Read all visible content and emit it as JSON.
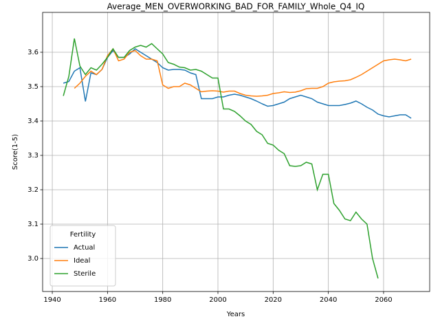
{
  "chart_data": {
    "type": "line",
    "title": "Average_MEN_OVERWORKING_BAD_FOR_FAMILY_Whole_Q4_IQ",
    "xlabel": "Years",
    "ylabel": "Score(1-5)",
    "x": [
      1944,
      1946,
      1948,
      1950,
      1952,
      1954,
      1956,
      1958,
      1960,
      1962,
      1964,
      1966,
      1968,
      1970,
      1972,
      1974,
      1976,
      1978,
      1980,
      1982,
      1984,
      1986,
      1988,
      1990,
      1992,
      1994,
      1996,
      1998,
      2000,
      2002,
      2004,
      2006,
      2008,
      2010,
      2012,
      2014,
      2016,
      2018,
      2020,
      2022,
      2024,
      2026,
      2028,
      2030,
      2032,
      2034,
      2036,
      2038,
      2040,
      2042,
      2044,
      2046,
      2048,
      2050,
      2052,
      2054,
      2056,
      2058,
      2060,
      2062,
      2064,
      2066,
      2068,
      2070
    ],
    "series": [
      {
        "name": "Actual",
        "color": "#1f77b4",
        "values": [
          3.51,
          3.515,
          3.545,
          3.555,
          3.457,
          3.54,
          3.535,
          3.55,
          3.585,
          3.605,
          3.585,
          3.585,
          3.595,
          3.61,
          3.6,
          3.59,
          3.58,
          3.57,
          3.555,
          3.548,
          3.55,
          3.55,
          3.548,
          3.54,
          3.535,
          3.465,
          3.465,
          3.465,
          3.47,
          3.47,
          3.475,
          3.478,
          3.475,
          3.47,
          3.465,
          3.458,
          3.45,
          3.443,
          3.445,
          3.45,
          3.455,
          3.465,
          3.47,
          3.475,
          3.47,
          3.465,
          3.455,
          3.45,
          3.445,
          3.445,
          3.445,
          3.448,
          3.452,
          3.458,
          3.45,
          3.44,
          3.432,
          3.42,
          3.415,
          3.412,
          3.415,
          3.418,
          3.418,
          3.408
        ]
      },
      {
        "name": "Ideal",
        "color": "#ff7f0e",
        "values": [
          null,
          null,
          3.495,
          3.51,
          3.53,
          3.545,
          3.535,
          3.55,
          3.59,
          3.61,
          3.575,
          3.58,
          3.6,
          3.605,
          3.59,
          3.58,
          3.58,
          3.575,
          3.505,
          3.495,
          3.5,
          3.5,
          3.51,
          3.505,
          3.495,
          3.485,
          3.487,
          3.488,
          3.487,
          3.484,
          3.487,
          3.487,
          3.48,
          3.475,
          3.473,
          3.472,
          3.473,
          3.475,
          3.48,
          3.482,
          3.485,
          3.483,
          3.484,
          3.488,
          3.494,
          3.495,
          3.495,
          3.5,
          3.51,
          3.514,
          3.516,
          3.517,
          3.52,
          3.527,
          3.535,
          3.545,
          3.555,
          3.565,
          3.575,
          3.578,
          3.58,
          3.578,
          3.575,
          3.58
        ]
      },
      {
        "name": "Sterile",
        "color": "#2ca02c",
        "values": [
          3.473,
          3.53,
          3.64,
          3.56,
          3.535,
          3.555,
          3.548,
          3.565,
          3.585,
          3.61,
          3.585,
          3.585,
          3.605,
          3.615,
          3.62,
          3.615,
          3.625,
          3.61,
          3.595,
          3.57,
          3.565,
          3.557,
          3.555,
          3.548,
          3.55,
          3.545,
          3.535,
          3.525,
          3.525,
          3.435,
          3.435,
          3.428,
          3.415,
          3.4,
          3.39,
          3.37,
          3.36,
          3.335,
          3.33,
          3.315,
          3.305,
          3.27,
          3.268,
          3.27,
          3.28,
          3.275,
          3.2,
          3.245,
          3.245,
          3.16,
          3.14,
          3.115,
          3.11,
          3.135,
          3.115,
          3.1,
          3.0,
          2.942,
          null,
          null,
          null,
          null,
          null,
          null
        ]
      }
    ],
    "xlim": [
      1936.5,
      2076.7
    ],
    "ylim": [
      2.904,
      3.716
    ],
    "xticks": [
      1940,
      1960,
      1980,
      2000,
      2020,
      2040,
      2060
    ],
    "yticks": [
      {
        "value": 3,
        "label": "3.0"
      },
      3.1,
      3.2,
      3.3,
      3.4,
      3.5,
      3.6
    ],
    "grid": true,
    "legend_title": "Fertility",
    "legend": "lower left"
  }
}
